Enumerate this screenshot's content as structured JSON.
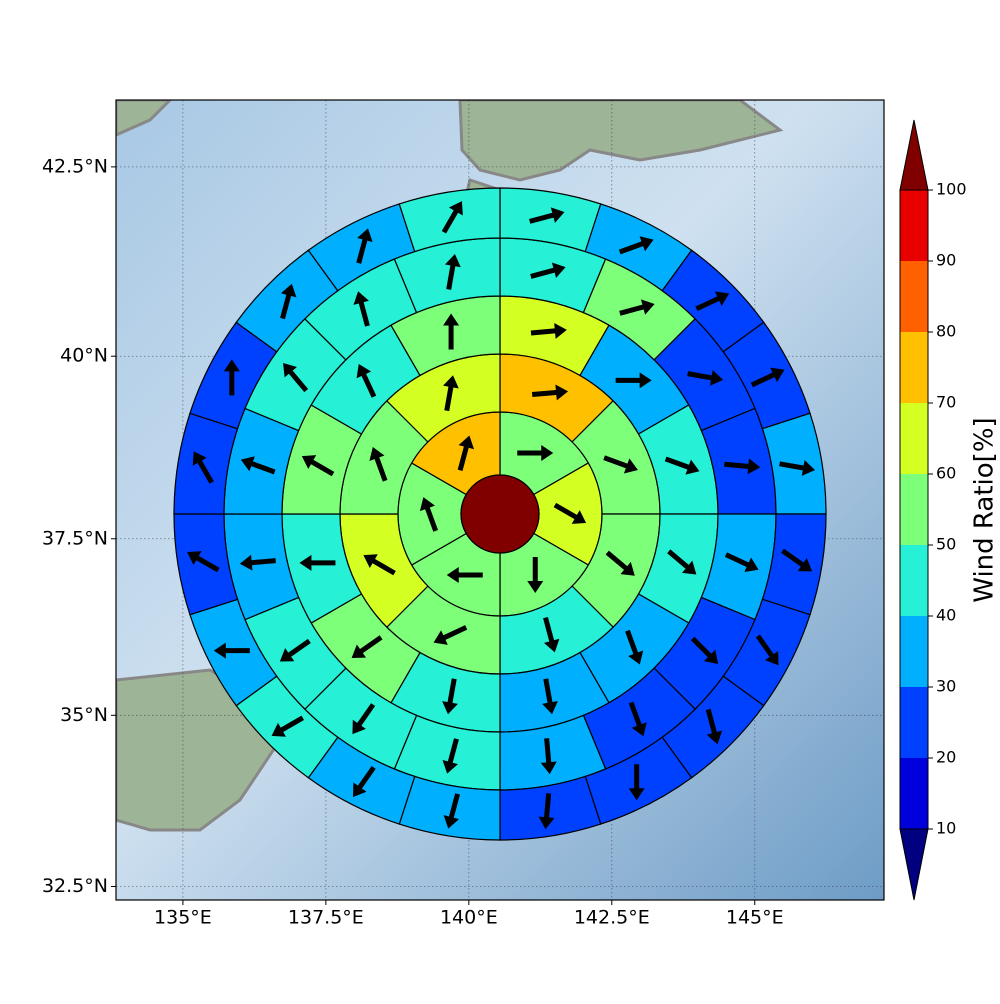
{
  "chart_data": {
    "type": "polar_sector_map",
    "xlim": [
      133.83,
      147.26
    ],
    "ylim": [
      32.3,
      43.36
    ],
    "xticks": [
      {
        "value": 135,
        "label": "135°E"
      },
      {
        "value": 137.5,
        "label": "137.5°E"
      },
      {
        "value": 140,
        "label": "140°E"
      },
      {
        "value": 142.5,
        "label": "142.5°E"
      },
      {
        "value": 145,
        "label": "145°E"
      }
    ],
    "yticks": [
      {
        "value": 32.5,
        "label": "32.5°N"
      },
      {
        "value": 35,
        "label": "35°N"
      },
      {
        "value": 37.5,
        "label": "37.5°N"
      },
      {
        "value": 40,
        "label": "40°N"
      },
      {
        "value": 42.5,
        "label": "42.5°N"
      }
    ],
    "grid": true,
    "center_value": 105,
    "rings": [
      {
        "values": [
          55,
          65,
          55,
          55,
          55,
          75
        ],
        "directions": [
          90,
          120,
          180,
          270,
          340,
          15
        ]
      },
      {
        "values": [
          75,
          55,
          55,
          45,
          55,
          65,
          55,
          65
        ],
        "directions": [
          85,
          110,
          130,
          165,
          245,
          300,
          340,
          10
        ]
      },
      {
        "values": [
          65,
          35,
          45,
          45,
          35,
          35,
          45,
          55,
          45,
          55,
          45,
          55
        ],
        "directions": [
          85,
          90,
          110,
          130,
          160,
          170,
          190,
          235,
          270,
          300,
          335,
          0
        ]
      },
      {
        "values": [
          45,
          55,
          25,
          25,
          35,
          25,
          25,
          35,
          45,
          45,
          45,
          35,
          35,
          45,
          45,
          45
        ],
        "directions": [
          75,
          75,
          100,
          95,
          115,
          135,
          160,
          175,
          195,
          215,
          235,
          265,
          290,
          320,
          345,
          10
        ]
      },
      {
        "values": [
          45,
          35,
          25,
          25,
          35,
          25,
          25,
          25,
          25,
          25,
          35,
          35,
          45,
          35,
          25,
          25,
          25,
          35,
          35,
          45
        ],
        "directions": [
          75,
          70,
          65,
          65,
          100,
          125,
          145,
          165,
          180,
          185,
          195,
          215,
          240,
          270,
          300,
          330,
          0,
          15,
          15,
          30
        ]
      }
    ],
    "colorbar": {
      "label": "Wind Ratio[%]",
      "ticks": [
        10,
        20,
        30,
        40,
        50,
        60,
        70,
        80,
        90,
        100
      ],
      "colors": [
        "#000080",
        "#0000dd",
        "#0040ff",
        "#00b0ff",
        "#26f0d5",
        "#7dff7a",
        "#d4ff23",
        "#ffc000",
        "#ff6000",
        "#e80000",
        "#800000"
      ]
    }
  }
}
